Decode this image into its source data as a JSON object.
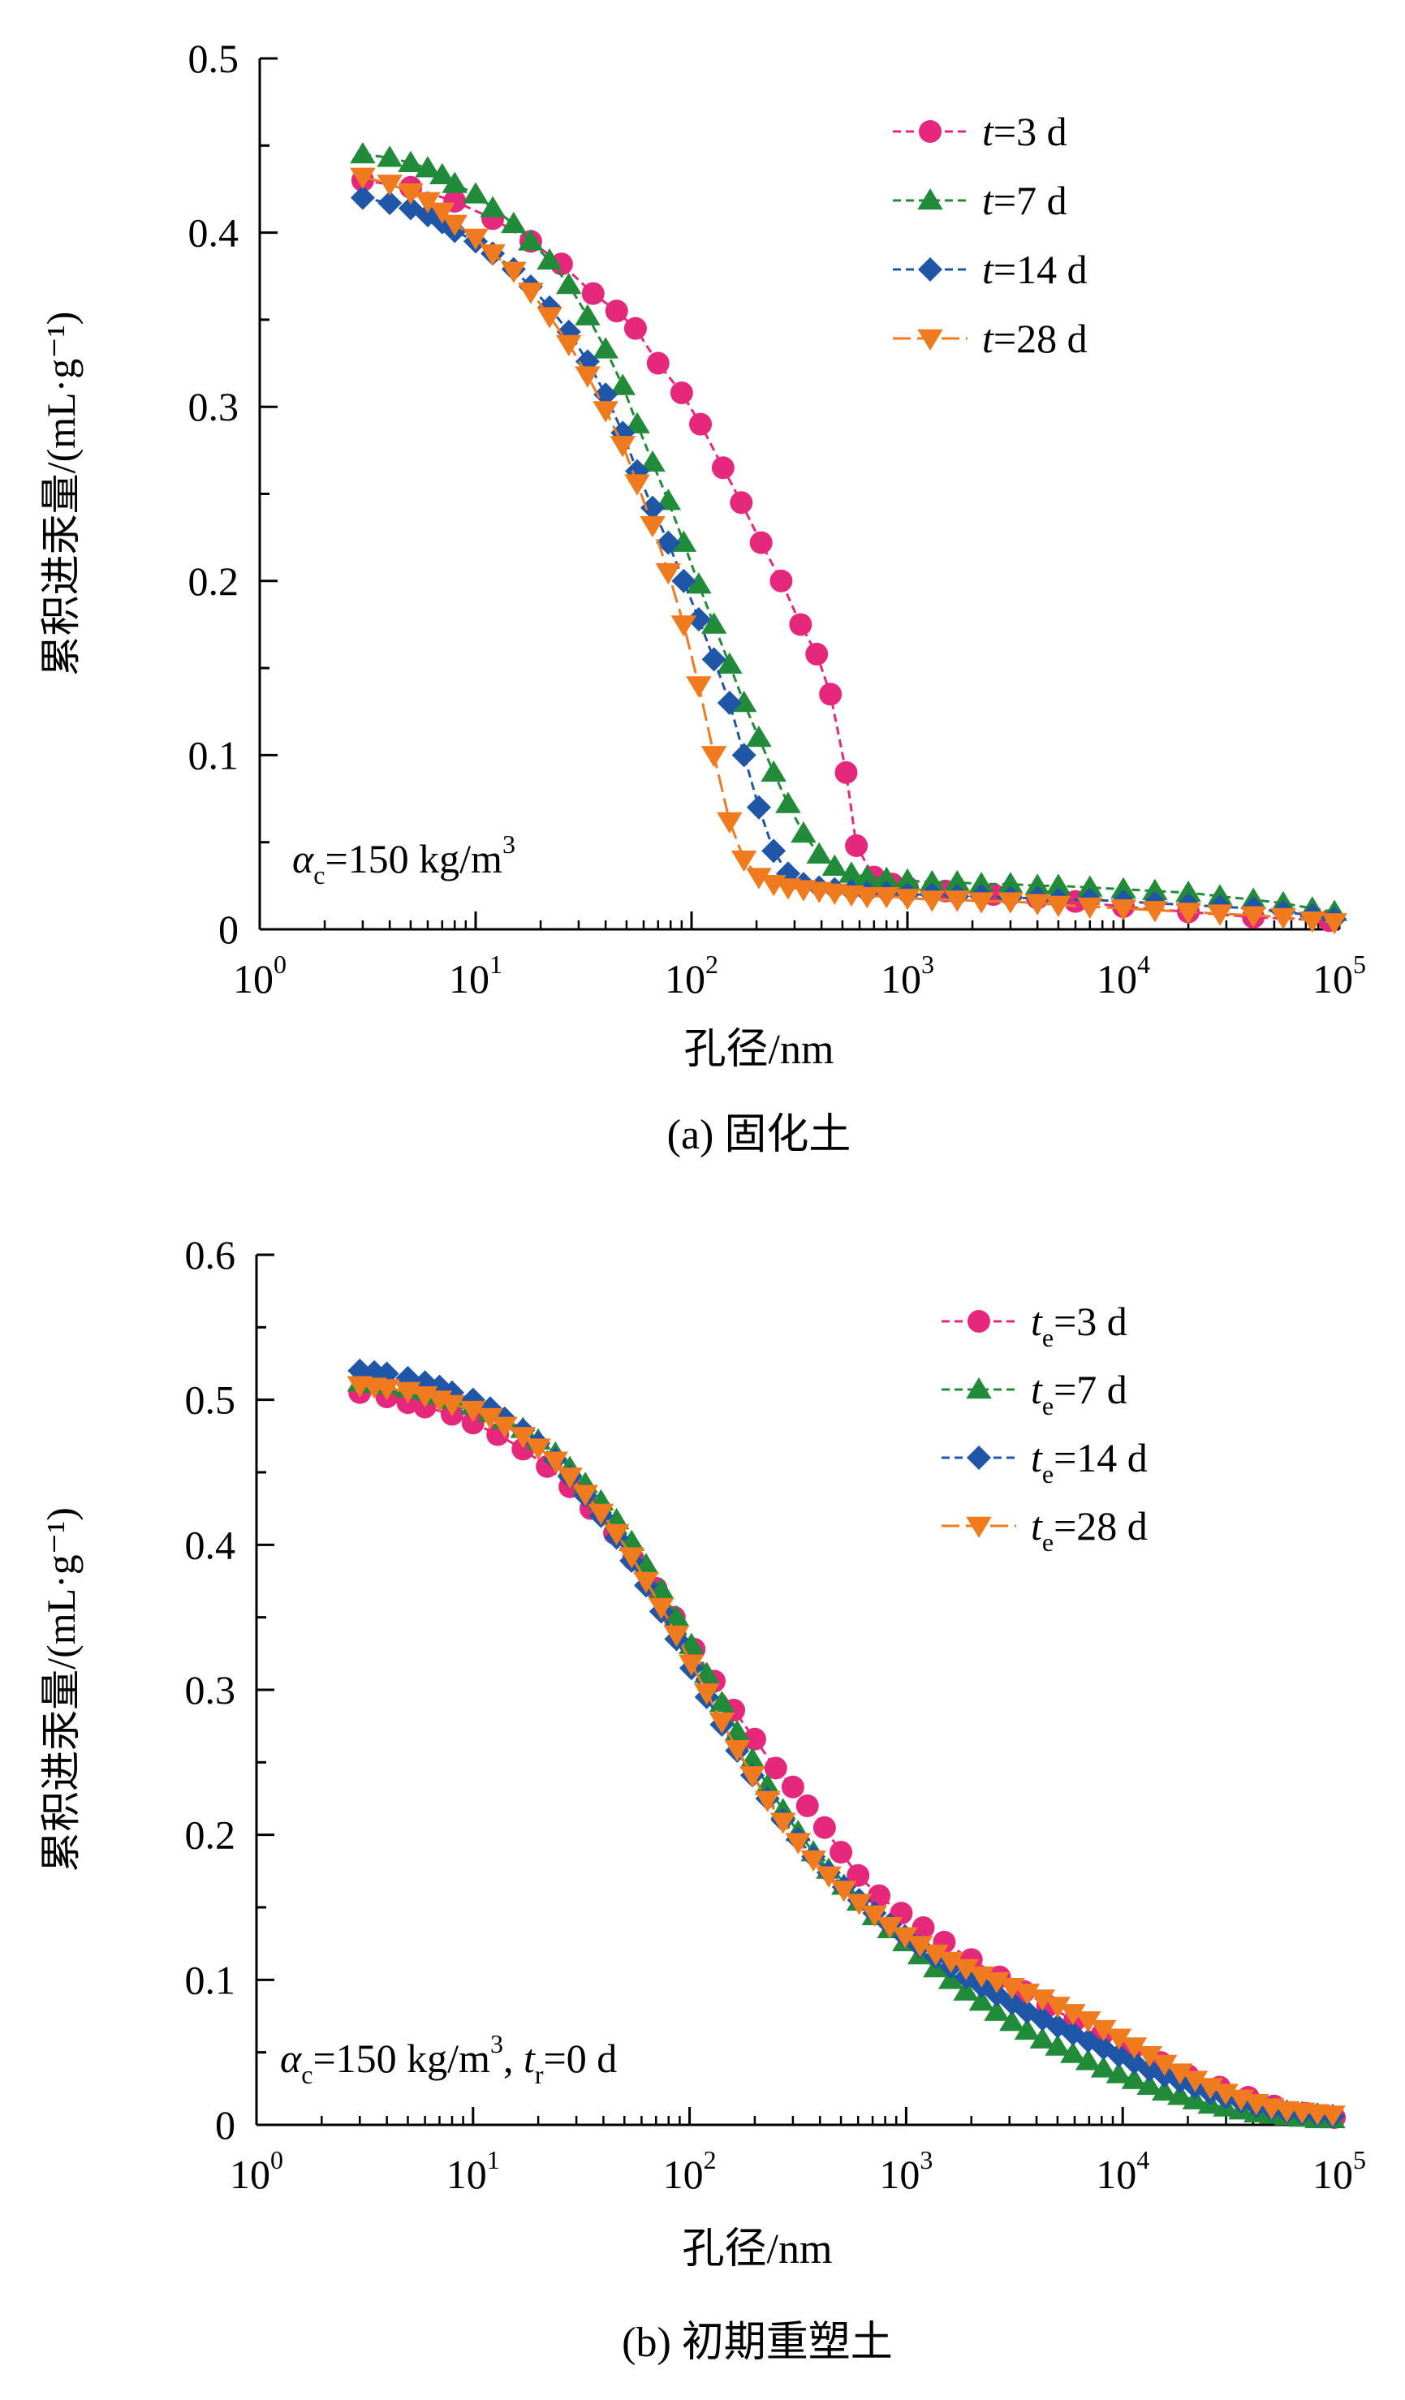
{
  "chart_data": [
    {
      "type": "scatter",
      "panel_caption": "(a) 固化土",
      "ylabel": "累积进汞量/(mL·g⁻¹)",
      "xlabel": "孔径/nm",
      "x_scale": "log",
      "xlim": [
        1,
        100000
      ],
      "ylim": [
        0,
        0.5
      ],
      "yticks": [
        "0",
        "0.1",
        "0.2",
        "0.3",
        "0.4",
        "0.5"
      ],
      "xticks": [
        {
          "base": "10",
          "exp": "0"
        },
        {
          "base": "10",
          "exp": "1"
        },
        {
          "base": "10",
          "exp": "2"
        },
        {
          "base": "10",
          "exp": "3"
        },
        {
          "base": "10",
          "exp": "4"
        },
        {
          "base": "10",
          "exp": "5"
        }
      ],
      "annotation": {
        "alpha": "α",
        "sub": "c",
        "text": "=150 kg/m",
        "sup": "3"
      },
      "legend_position": "top-right",
      "series": [
        {
          "name": "t=3 d",
          "var": "t",
          "var_sub": "",
          "rest": "=3 d",
          "color": "#e6287d",
          "marker": "circle",
          "dash": "10,6",
          "x": [
            3,
            5,
            8,
            12,
            18,
            25,
            35,
            45,
            55,
            70,
            90,
            110,
            140,
            170,
            210,
            260,
            320,
            380,
            440,
            520,
            580,
            700,
            850,
            1000,
            1500,
            2500,
            4000,
            6000,
            10000,
            20000,
            40000,
            90000
          ],
          "y": [
            0.43,
            0.426,
            0.418,
            0.408,
            0.395,
            0.382,
            0.365,
            0.355,
            0.345,
            0.325,
            0.308,
            0.29,
            0.265,
            0.245,
            0.222,
            0.2,
            0.175,
            0.158,
            0.135,
            0.09,
            0.048,
            0.03,
            0.026,
            0.024,
            0.022,
            0.02,
            0.018,
            0.016,
            0.013,
            0.01,
            0.007,
            0.005
          ]
        },
        {
          "name": "t=7 d",
          "var": "t",
          "var_sub": "",
          "rest": "=7 d",
          "color": "#228b3a",
          "marker": "triangle-up",
          "dash": "10,6",
          "x": [
            3,
            4,
            5,
            6,
            7,
            8,
            10,
            12,
            15,
            18,
            22,
            27,
            33,
            40,
            48,
            56,
            66,
            78,
            92,
            108,
            127,
            150,
            175,
            205,
            240,
            280,
            330,
            390,
            460,
            550,
            650,
            800,
            1000,
            1300,
            1700,
            2200,
            3000,
            4000,
            5000,
            7000,
            10000,
            14000,
            20000,
            28000,
            40000,
            55000,
            75000,
            95000
          ],
          "y": [
            0.445,
            0.443,
            0.44,
            0.437,
            0.433,
            0.428,
            0.422,
            0.414,
            0.405,
            0.395,
            0.384,
            0.37,
            0.352,
            0.333,
            0.312,
            0.29,
            0.268,
            0.246,
            0.222,
            0.198,
            0.175,
            0.152,
            0.13,
            0.11,
            0.09,
            0.072,
            0.055,
            0.043,
            0.036,
            0.032,
            0.03,
            0.029,
            0.028,
            0.027,
            0.027,
            0.026,
            0.026,
            0.025,
            0.025,
            0.024,
            0.023,
            0.022,
            0.021,
            0.019,
            0.017,
            0.015,
            0.012,
            0.01
          ]
        },
        {
          "name": "t=14 d",
          "var": "t",
          "var_sub": "",
          "rest": "=14 d",
          "color": "#1f56a8",
          "marker": "diamond",
          "dash": "10,6",
          "x": [
            3,
            4,
            5,
            6,
            7,
            8,
            10,
            12,
            15,
            18,
            22,
            27,
            33,
            40,
            48,
            56,
            66,
            78,
            92,
            108,
            127,
            150,
            175,
            205,
            240,
            280,
            330,
            390,
            460,
            550,
            650,
            800,
            1000,
            1300,
            1700,
            2200,
            3000,
            4000,
            5000,
            7000,
            10000,
            14000,
            20000,
            28000,
            40000,
            55000,
            75000,
            95000
          ],
          "y": [
            0.42,
            0.417,
            0.414,
            0.41,
            0.406,
            0.401,
            0.395,
            0.388,
            0.379,
            0.369,
            0.357,
            0.343,
            0.326,
            0.307,
            0.285,
            0.263,
            0.242,
            0.222,
            0.2,
            0.178,
            0.155,
            0.13,
            0.1,
            0.07,
            0.045,
            0.032,
            0.026,
            0.024,
            0.023,
            0.022,
            0.021,
            0.021,
            0.02,
            0.02,
            0.019,
            0.019,
            0.018,
            0.018,
            0.017,
            0.017,
            0.016,
            0.015,
            0.014,
            0.013,
            0.012,
            0.01,
            0.008,
            0.006
          ]
        },
        {
          "name": "t=28 d",
          "var": "t",
          "var_sub": "",
          "rest": "=28 d",
          "color": "#f07a1e",
          "marker": "triangle-down",
          "dash": "22,8",
          "x": [
            3,
            4,
            5,
            6,
            7,
            8,
            10,
            12,
            15,
            18,
            22,
            27,
            33,
            40,
            48,
            56,
            66,
            78,
            92,
            108,
            127,
            150,
            175,
            205,
            240,
            280,
            330,
            390,
            460,
            550,
            650,
            800,
            1000,
            1300,
            1700,
            2200,
            3000,
            4000,
            5000,
            7000,
            10000,
            14000,
            20000,
            28000,
            40000,
            55000,
            75000,
            95000
          ],
          "y": [
            0.432,
            0.428,
            0.423,
            0.418,
            0.412,
            0.405,
            0.397,
            0.388,
            0.378,
            0.366,
            0.352,
            0.336,
            0.318,
            0.298,
            0.278,
            0.256,
            0.232,
            0.205,
            0.175,
            0.14,
            0.1,
            0.062,
            0.04,
            0.03,
            0.026,
            0.024,
            0.023,
            0.022,
            0.021,
            0.02,
            0.019,
            0.019,
            0.018,
            0.017,
            0.017,
            0.016,
            0.016,
            0.015,
            0.014,
            0.013,
            0.012,
            0.011,
            0.01,
            0.009,
            0.008,
            0.007,
            0.005,
            0.004
          ]
        }
      ]
    },
    {
      "type": "scatter",
      "panel_caption": "(b) 初期重塑土",
      "ylabel": "累积进汞量/(mL·g⁻¹)",
      "xlabel": "孔径/nm",
      "x_scale": "log",
      "xlim": [
        1,
        100000
      ],
      "ylim": [
        0,
        0.6
      ],
      "yticks": [
        "0",
        "0.1",
        "0.2",
        "0.3",
        "0.4",
        "0.5",
        "0.6"
      ],
      "xticks": [
        {
          "base": "10",
          "exp": "0"
        },
        {
          "base": "10",
          "exp": "1"
        },
        {
          "base": "10",
          "exp": "2"
        },
        {
          "base": "10",
          "exp": "3"
        },
        {
          "base": "10",
          "exp": "4"
        },
        {
          "base": "10",
          "exp": "5"
        }
      ],
      "annotation": {
        "alpha": "α",
        "sub": "c",
        "text": "=150 kg/m",
        "sup": "3",
        "extra_var": "t",
        "extra_sub": "r",
        "extra_rest": "=0 d"
      },
      "legend_position": "top-right",
      "series": [
        {
          "name": "te=3 d",
          "var": "t",
          "var_sub": "e",
          "rest": "=3 d",
          "color": "#e6287d",
          "marker": "circle",
          "dash": "10,6",
          "x": [
            3,
            4,
            5,
            6,
            8,
            10,
            13,
            17,
            22,
            28,
            35,
            45,
            55,
            70,
            85,
            105,
            130,
            160,
            200,
            250,
            300,
            350,
            420,
            500,
            600,
            750,
            950,
            1200,
            1500,
            2000,
            2700,
            3500,
            4500,
            6000,
            8000,
            11000,
            15000,
            20000,
            28000,
            38000,
            50000,
            70000,
            95000
          ],
          "y": [
            0.505,
            0.502,
            0.498,
            0.495,
            0.49,
            0.484,
            0.476,
            0.466,
            0.454,
            0.44,
            0.425,
            0.408,
            0.39,
            0.37,
            0.35,
            0.328,
            0.306,
            0.286,
            0.266,
            0.246,
            0.233,
            0.22,
            0.205,
            0.188,
            0.172,
            0.158,
            0.146,
            0.136,
            0.126,
            0.114,
            0.102,
            0.092,
            0.082,
            0.072,
            0.062,
            0.052,
            0.043,
            0.034,
            0.026,
            0.019,
            0.013,
            0.008,
            0.005
          ]
        },
        {
          "name": "te=7 d",
          "var": "t",
          "var_sub": "e",
          "rest": "=7 d",
          "color": "#228b3a",
          "marker": "triangle-up",
          "dash": "10,6",
          "x": [
            3,
            3.5,
            4,
            5,
            6,
            7,
            8,
            10,
            12,
            14,
            17,
            20,
            24,
            28,
            33,
            39,
            46,
            54,
            63,
            74,
            87,
            102,
            120,
            141,
            166,
            195,
            229,
            270,
            317,
            373,
            439,
            516,
            607,
            714,
            840,
            988,
            1160,
            1370,
            1610,
            1890,
            2230,
            2620,
            3080,
            3620,
            4260,
            5010,
            5890,
            6930,
            8150,
            9590,
            11300,
            13300,
            15600,
            18400,
            21600,
            25400,
            29900,
            35200,
            41400,
            48700,
            57300,
            67400,
            79300,
            93300
          ],
          "y": [
            0.512,
            0.511,
            0.51,
            0.508,
            0.506,
            0.503,
            0.5,
            0.496,
            0.491,
            0.486,
            0.48,
            0.472,
            0.463,
            0.453,
            0.442,
            0.43,
            0.417,
            0.402,
            0.386,
            0.369,
            0.35,
            0.331,
            0.311,
            0.291,
            0.271,
            0.252,
            0.234,
            0.217,
            0.202,
            0.188,
            0.176,
            0.165,
            0.154,
            0.144,
            0.135,
            0.126,
            0.117,
            0.108,
            0.1,
            0.092,
            0.085,
            0.078,
            0.071,
            0.065,
            0.059,
            0.054,
            0.049,
            0.044,
            0.039,
            0.035,
            0.031,
            0.027,
            0.023,
            0.02,
            0.017,
            0.014,
            0.012,
            0.01,
            0.008,
            0.007,
            0.006,
            0.005,
            0.004,
            0.004
          ]
        },
        {
          "name": "te=14 d",
          "var": "t",
          "var_sub": "e",
          "rest": "=14 d",
          "color": "#1f56a8",
          "marker": "diamond",
          "dash": "10,6",
          "x": [
            3,
            3.5,
            4,
            5,
            6,
            7,
            8,
            10,
            12,
            14,
            17,
            20,
            24,
            28,
            33,
            39,
            46,
            54,
            63,
            74,
            87,
            102,
            120,
            141,
            166,
            195,
            229,
            270,
            317,
            373,
            439,
            516,
            607,
            714,
            840,
            988,
            1160,
            1370,
            1610,
            1890,
            2230,
            2620,
            3080,
            3620,
            4260,
            5010,
            5890,
            6930,
            8150,
            9590,
            11300,
            13300,
            15600,
            18400,
            21600,
            25400,
            29900,
            35200,
            41400,
            48700,
            57300,
            67400,
            79300,
            93300
          ],
          "y": [
            0.52,
            0.519,
            0.518,
            0.515,
            0.512,
            0.509,
            0.505,
            0.5,
            0.494,
            0.487,
            0.479,
            0.47,
            0.459,
            0.447,
            0.434,
            0.42,
            0.405,
            0.389,
            0.372,
            0.354,
            0.335,
            0.315,
            0.295,
            0.276,
            0.258,
            0.241,
            0.225,
            0.21,
            0.197,
            0.185,
            0.174,
            0.164,
            0.155,
            0.146,
            0.138,
            0.13,
            0.123,
            0.116,
            0.109,
            0.102,
            0.096,
            0.09,
            0.084,
            0.078,
            0.073,
            0.068,
            0.063,
            0.058,
            0.053,
            0.048,
            0.043,
            0.038,
            0.034,
            0.03,
            0.026,
            0.022,
            0.019,
            0.016,
            0.013,
            0.011,
            0.009,
            0.008,
            0.007,
            0.006
          ]
        },
        {
          "name": "te=28 d",
          "var": "t",
          "var_sub": "e",
          "rest": "=28 d",
          "color": "#f07a1e",
          "marker": "triangle-down",
          "dash": "22,8",
          "x": [
            3,
            3.5,
            4,
            5,
            6,
            7,
            8,
            10,
            12,
            14,
            17,
            20,
            24,
            28,
            33,
            39,
            46,
            54,
            63,
            74,
            87,
            102,
            120,
            141,
            166,
            195,
            229,
            270,
            317,
            373,
            439,
            516,
            607,
            714,
            840,
            988,
            1160,
            1370,
            1610,
            1890,
            2230,
            2620,
            3080,
            3620,
            4260,
            5010,
            5890,
            6930,
            8150,
            9590,
            11300,
            13300,
            15600,
            18400,
            21600,
            25400,
            29900,
            35200,
            41400,
            48700,
            57300,
            67400,
            79300,
            93300
          ],
          "y": [
            0.51,
            0.509,
            0.508,
            0.506,
            0.503,
            0.5,
            0.497,
            0.493,
            0.488,
            0.482,
            0.475,
            0.467,
            0.458,
            0.447,
            0.435,
            0.422,
            0.408,
            0.392,
            0.375,
            0.357,
            0.338,
            0.318,
            0.298,
            0.278,
            0.259,
            0.241,
            0.224,
            0.209,
            0.195,
            0.183,
            0.172,
            0.162,
            0.153,
            0.145,
            0.137,
            0.13,
            0.124,
            0.118,
            0.113,
            0.108,
            0.103,
            0.099,
            0.095,
            0.091,
            0.087,
            0.082,
            0.077,
            0.072,
            0.066,
            0.06,
            0.054,
            0.048,
            0.042,
            0.036,
            0.031,
            0.026,
            0.022,
            0.018,
            0.015,
            0.012,
            0.01,
            0.009,
            0.008,
            0.007
          ]
        }
      ]
    }
  ]
}
